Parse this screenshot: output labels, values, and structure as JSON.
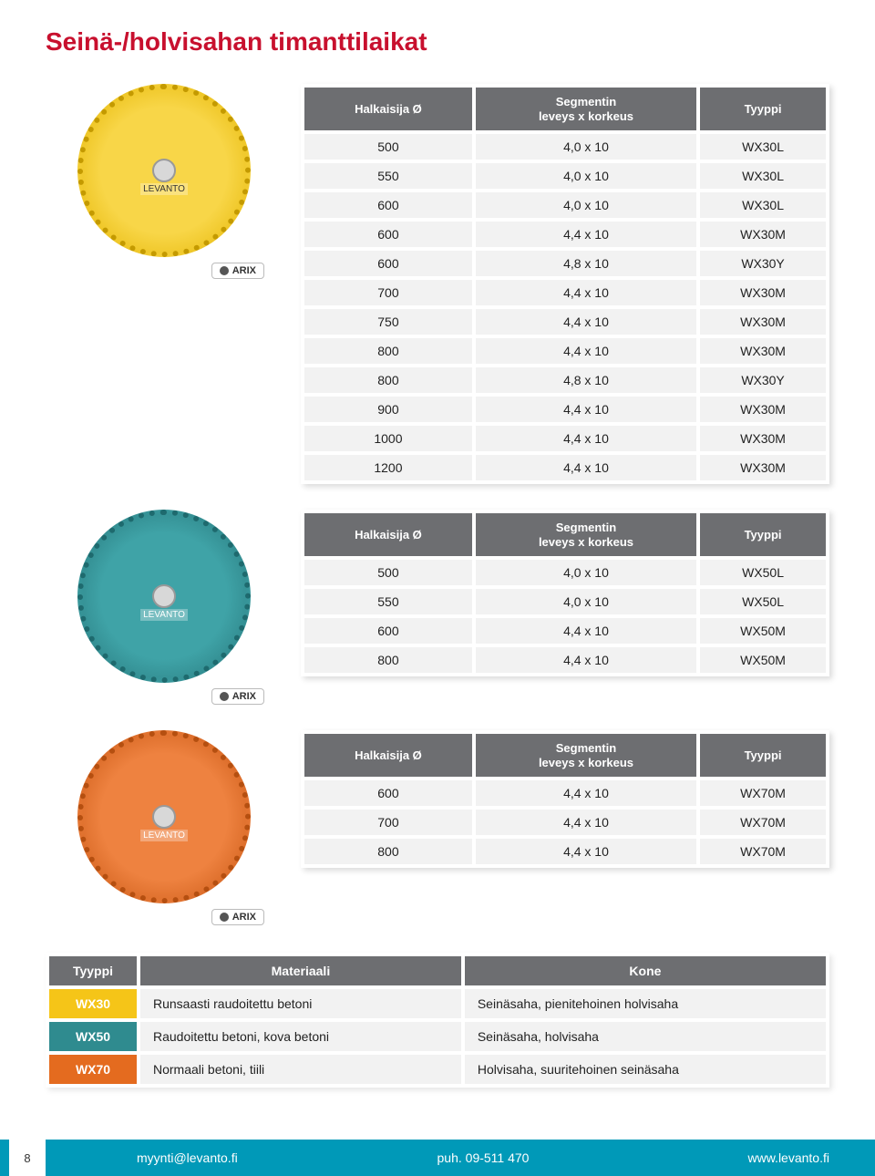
{
  "title": "Seinä-/holvisahan timanttilaikat",
  "headers": {
    "dia": "Halkaisija Ø",
    "seg": "Segmentin\nleveys x korkeus",
    "type": "Tyyppi"
  },
  "arix_label": "ARIX",
  "discs": {
    "yellow": {
      "fill": "#f5c518",
      "ring": "#c49a00"
    },
    "teal": {
      "fill": "#2f8b8f",
      "ring": "#1e6a6e"
    },
    "orange": {
      "fill": "#e46b1f",
      "ring": "#b54f10"
    }
  },
  "table1": [
    [
      "500",
      "4,0 x 10",
      "WX30L"
    ],
    [
      "550",
      "4,0 x 10",
      "WX30L"
    ],
    [
      "600",
      "4,0 x 10",
      "WX30L"
    ],
    [
      "600",
      "4,4 x 10",
      "WX30M"
    ],
    [
      "600",
      "4,8 x 10",
      "WX30Y"
    ],
    [
      "700",
      "4,4 x 10",
      "WX30M"
    ],
    [
      "750",
      "4,4 x 10",
      "WX30M"
    ],
    [
      "800",
      "4,4 x 10",
      "WX30M"
    ],
    [
      "800",
      "4,8 x 10",
      "WX30Y"
    ],
    [
      "900",
      "4,4 x 10",
      "WX30M"
    ],
    [
      "1000",
      "4,4 x 10",
      "WX30M"
    ],
    [
      "1200",
      "4,4 x 10",
      "WX30M"
    ]
  ],
  "table2": [
    [
      "500",
      "4,0 x 10",
      "WX50L"
    ],
    [
      "550",
      "4,0 x 10",
      "WX50L"
    ],
    [
      "600",
      "4,4 x 10",
      "WX50M"
    ],
    [
      "800",
      "4,4 x 10",
      "WX50M"
    ]
  ],
  "table3": [
    [
      "600",
      "4,4 x 10",
      "WX70M"
    ],
    [
      "700",
      "4,4 x 10",
      "WX70M"
    ],
    [
      "800",
      "4,4 x 10",
      "WX70M"
    ]
  ],
  "materials": {
    "headers": [
      "Tyyppi",
      "Materiaali",
      "Kone"
    ],
    "rows": [
      {
        "type": "WX30",
        "color": "#f5c518",
        "material": "Runsaasti raudoitettu betoni",
        "kone": "Seinäsaha, pienitehoinen holvisaha"
      },
      {
        "type": "WX50",
        "color": "#2f8b8f",
        "material": "Raudoitettu betoni, kova betoni",
        "kone": "Seinäsaha, holvisaha"
      },
      {
        "type": "WX70",
        "color": "#e46b1f",
        "material": "Normaali betoni, tiili",
        "kone": "Holvisaha, suuritehoinen seinäsaha"
      }
    ]
  },
  "disc_brand": "LEVANTO",
  "footer": {
    "page": "8",
    "email": "myynti@levanto.fi",
    "phone": "puh. 09-511 470",
    "web": "www.levanto.fi"
  }
}
